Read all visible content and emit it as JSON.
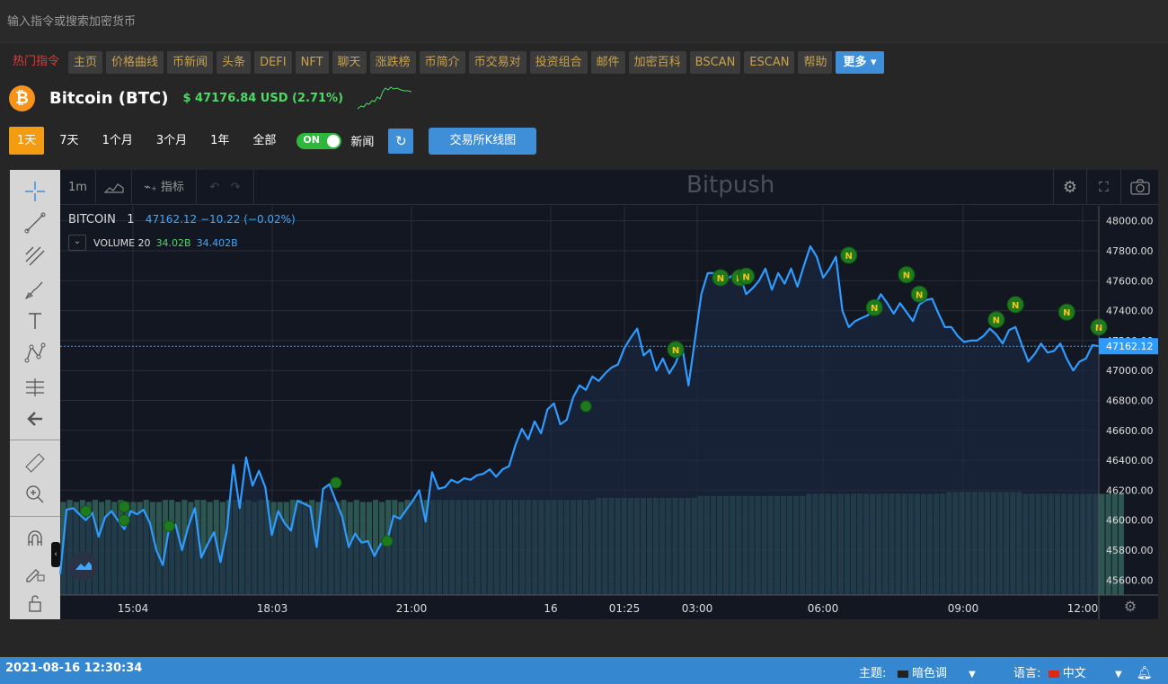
{
  "search": {
    "placeholder": "输入指令或搜索加密货币"
  },
  "nav": {
    "hot": "热门指令",
    "items": [
      "主页",
      "价格曲线",
      "币新闻",
      "头条",
      "DEFI",
      "NFT",
      "聊天",
      "涨跌榜",
      "币简介",
      "币交易对",
      "投资组合",
      "邮件",
      "加密百科",
      "BSCAN",
      "ESCAN",
      "帮助"
    ],
    "more": "更多 ▾"
  },
  "coin": {
    "logo": "₿",
    "name": "Bitcoin (BTC)",
    "price": "$ 47176.84 USD (2.71%)"
  },
  "ranges": [
    "1天",
    "7天",
    "1个月",
    "3个月",
    "1年",
    "全部"
  ],
  "toggle": {
    "label": "ON"
  },
  "news_label": "新闻",
  "kline_button": "交易所K线图",
  "chart_toolbar": {
    "interval": "1m",
    "indicators": "指标",
    "watermark": "Bitpush"
  },
  "legend": {
    "symbol": "BITCOIN",
    "interval": "1",
    "values": "47162.12  −10.22 (−0.02%)",
    "volume_label": "VOLUME 20",
    "vol1": "34.02B",
    "vol2": "34.402B"
  },
  "colors": {
    "line": "#2f9bff",
    "volume": "#2e5a55",
    "accent": "#3f8fd8",
    "news_marker": "#1f7a1f"
  },
  "chart_data": {
    "type": "line",
    "ylim": [
      45500,
      48100
    ],
    "yticks": [
      "48000.00",
      "47800.00",
      "47600.00",
      "47400.00",
      "47200.00",
      "47000.00",
      "46800.00",
      "46600.00",
      "46400.00",
      "46200.00",
      "46000.00",
      "45800.00",
      "45600.00"
    ],
    "xticks": [
      "15:04",
      "18:03",
      "21:00",
      "16",
      "01:25",
      "03:00",
      "06:00",
      "09:00",
      "12:00"
    ],
    "last_price": "47162.12",
    "values": [
      45640,
      46070,
      46080,
      46040,
      46000,
      46050,
      45890,
      46020,
      46060,
      46000,
      45940,
      46060,
      46040,
      46070,
      45980,
      45800,
      45700,
      45950,
      45970,
      45800,
      45960,
      46080,
      45750,
      45840,
      45920,
      45720,
      45930,
      46370,
      46080,
      46420,
      46230,
      46330,
      46220,
      45900,
      46060,
      45980,
      45930,
      46130,
      46110,
      46090,
      45820,
      46210,
      46240,
      46130,
      46020,
      45820,
      45910,
      45850,
      45860,
      45760,
      45840,
      45860,
      46030,
      46010,
      46070,
      46130,
      46200,
      45990,
      46320,
      46210,
      46220,
      46270,
      46250,
      46280,
      46270,
      46300,
      46310,
      46340,
      46290,
      46340,
      46360,
      46500,
      46610,
      46540,
      46660,
      46580,
      46740,
      46780,
      46640,
      46670,
      46820,
      46900,
      46870,
      46960,
      46930,
      46980,
      47020,
      47040,
      47150,
      47220,
      47280,
      47100,
      47140,
      47000,
      47080,
      46980,
      47050,
      47160,
      46900,
      47200,
      47510,
      47650,
      47650,
      47600,
      47610,
      47640,
      47640,
      47510,
      47550,
      47600,
      47680,
      47540,
      47650,
      47580,
      47680,
      47560,
      47700,
      47830,
      47760,
      47620,
      47680,
      47760,
      47400,
      47290,
      47330,
      47350,
      47370,
      47430,
      47510,
      47450,
      47380,
      47450,
      47390,
      47330,
      47440,
      47470,
      47480,
      47380,
      47290,
      47290,
      47230,
      47190,
      47200,
      47200,
      47230,
      47280,
      47240,
      47180,
      47270,
      47290,
      47170,
      47060,
      47110,
      47180,
      47120,
      47130,
      47180,
      47080,
      47000,
      47060,
      47080,
      47170,
      47162
    ],
    "volume_fraction": [
      0.46,
      0.47,
      0.46,
      0.47,
      0.46,
      0.47,
      0.46,
      0.47,
      0.46,
      0.47,
      0.46,
      0.46,
      0.46,
      0.47,
      0.46,
      0.46,
      0.47,
      0.47,
      0.46,
      0.47,
      0.46,
      0.47,
      0.47,
      0.46,
      0.47,
      0.46,
      0.47,
      0.47,
      0.46,
      0.47,
      0.46,
      0.47,
      0.47,
      0.46,
      0.46,
      0.46,
      0.47,
      0.47,
      0.46,
      0.47,
      0.46,
      0.47,
      0.46,
      0.46,
      0.47,
      0.46,
      0.47,
      0.46,
      0.46,
      0.47,
      0.46,
      0.47,
      0.47,
      0.46,
      0.47,
      0.47,
      0.47,
      0.47,
      0.47,
      0.47,
      0.47,
      0.47,
      0.47,
      0.47,
      0.47,
      0.47,
      0.47,
      0.47,
      0.47,
      0.47,
      0.47,
      0.47,
      0.47,
      0.47,
      0.47,
      0.47,
      0.47,
      0.47,
      0.47,
      0.47,
      0.47,
      0.47,
      0.47,
      0.47,
      0.48,
      0.48,
      0.48,
      0.48,
      0.48,
      0.48,
      0.48,
      0.48,
      0.48,
      0.48,
      0.48,
      0.48,
      0.48,
      0.48,
      0.48,
      0.48,
      0.49,
      0.49,
      0.49,
      0.49,
      0.49,
      0.49,
      0.49,
      0.49,
      0.49,
      0.49,
      0.49,
      0.49,
      0.49,
      0.49,
      0.49,
      0.49,
      0.49,
      0.5,
      0.5,
      0.5,
      0.5,
      0.5,
      0.5,
      0.5,
      0.5,
      0.5,
      0.5,
      0.5,
      0.5,
      0.5,
      0.5,
      0.5,
      0.5,
      0.5,
      0.5,
      0.5,
      0.5,
      0.5,
      0.5,
      0.51,
      0.51,
      0.51,
      0.51,
      0.51,
      0.51,
      0.51,
      0.51,
      0.51,
      0.51,
      0.51,
      0.51,
      0.5,
      0.5,
      0.5,
      0.5,
      0.5,
      0.5,
      0.5,
      0.5,
      0.5,
      0.5,
      0.5,
      0.5,
      0.5,
      0.5,
      0.5,
      0.5
    ],
    "news_markers": [
      {
        "i": 4,
        "v": 46060,
        "labeled": false
      },
      {
        "i": 10,
        "v": 46090,
        "labeled": false
      },
      {
        "i": 10,
        "v": 46000,
        "labeled": false
      },
      {
        "i": 17,
        "v": 45960,
        "labeled": false
      },
      {
        "i": 43,
        "v": 46250,
        "labeled": false
      },
      {
        "i": 51,
        "v": 45860,
        "labeled": false
      },
      {
        "i": 82,
        "v": 46760,
        "labeled": false
      },
      {
        "i": 96,
        "v": 47140,
        "labeled": true
      },
      {
        "i": 103,
        "v": 47620,
        "labeled": true
      },
      {
        "i": 106,
        "v": 47620,
        "labeled": true
      },
      {
        "i": 107,
        "v": 47630,
        "labeled": true
      },
      {
        "i": 123,
        "v": 47770,
        "labeled": true
      },
      {
        "i": 127,
        "v": 47420,
        "labeled": true
      },
      {
        "i": 132,
        "v": 47640,
        "labeled": true
      },
      {
        "i": 134,
        "v": 47510,
        "labeled": true
      },
      {
        "i": 146,
        "v": 47340,
        "labeled": true
      },
      {
        "i": 149,
        "v": 47440,
        "labeled": true
      },
      {
        "i": 157,
        "v": 47390,
        "labeled": true
      },
      {
        "i": 162,
        "v": 47290,
        "labeled": true
      }
    ]
  },
  "status": {
    "datetime": "2021-08-16 12:30:34",
    "theme_label": "主题:",
    "theme_value": "暗色调",
    "lang_label": "语言:",
    "lang_value": "中文"
  }
}
